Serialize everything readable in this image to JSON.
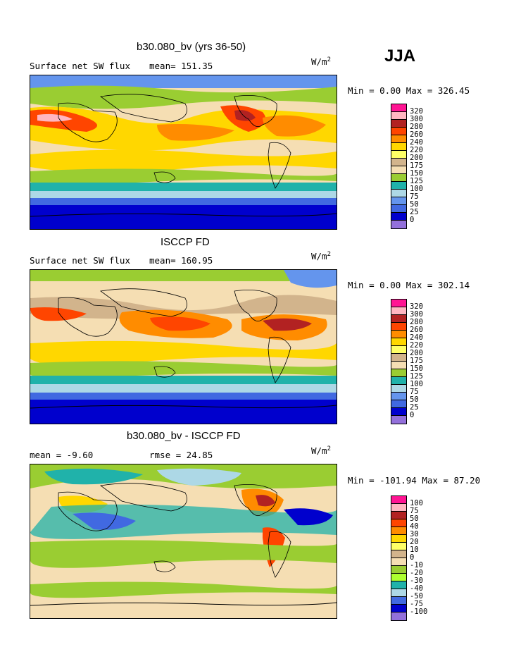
{
  "season": "JJA",
  "panels": [
    {
      "title": "b30.080_bv (yrs 36-50)",
      "left_label": "Surface net SW flux",
      "mean_label": "mean= 151.35",
      "units": "W/m",
      "units_sup": "2",
      "minmax_label": "Min =   0.00 Max = 326.45",
      "levels": [
        "320",
        "300",
        "280",
        "260",
        "240",
        "220",
        "200",
        "175",
        "150",
        "125",
        "100",
        "75",
        "50",
        "25",
        "0"
      ],
      "colors": [
        "#ff1493",
        "#ffb6c1",
        "#b22222",
        "#ff4500",
        "#ff8c00",
        "#ffd700",
        "#ffff66",
        "#d2b48c",
        "#f5deb3",
        "#9acd32",
        "#20b2aa",
        "#add8e6",
        "#6495ed",
        "#4169e1",
        "#0000cd",
        "#9370db"
      ]
    },
    {
      "title": "ISCCP FD",
      "left_label": "Surface net SW flux",
      "mean_label": "mean= 160.95",
      "units": "W/m",
      "units_sup": "2",
      "minmax_label": "Min =   0.00 Max = 302.14",
      "levels": [
        "320",
        "300",
        "280",
        "260",
        "240",
        "220",
        "200",
        "175",
        "150",
        "125",
        "100",
        "75",
        "50",
        "25",
        "0"
      ],
      "colors": [
        "#ff1493",
        "#ffb6c1",
        "#b22222",
        "#ff4500",
        "#ff8c00",
        "#ffd700",
        "#ffff66",
        "#d2b48c",
        "#f5deb3",
        "#9acd32",
        "#20b2aa",
        "#add8e6",
        "#6495ed",
        "#4169e1",
        "#0000cd",
        "#9370db"
      ]
    },
    {
      "title": "b30.080_bv - ISCCP FD",
      "left_label": "mean =  -9.60",
      "mean_label": "rmse =  24.85",
      "units": "W/m",
      "units_sup": "2",
      "minmax_label": "Min = -101.94 Max =  87.20",
      "levels": [
        "100",
        "75",
        "50",
        "40",
        "30",
        "20",
        "10",
        "0",
        "-10",
        "-20",
        "-30",
        "-40",
        "-50",
        "-75",
        "-100"
      ],
      "colors": [
        "#ff1493",
        "#ffb6c1",
        "#b22222",
        "#ff4500",
        "#ff8c00",
        "#ffd700",
        "#ffff66",
        "#d2b48c",
        "#f5deb3",
        "#9acd32",
        "#adff2f",
        "#20b2aa",
        "#add8e6",
        "#4169e1",
        "#0000cd",
        "#9370db"
      ]
    }
  ],
  "chart_data": [
    {
      "type": "heatmap",
      "title": "b30.080_bv (yrs 36-50)",
      "field": "Surface net SW flux",
      "units": "W/m2",
      "mean": 151.35,
      "min": 0.0,
      "max": 326.45,
      "contour_levels": [
        0,
        25,
        50,
        75,
        100,
        125,
        150,
        175,
        200,
        220,
        240,
        260,
        280,
        300,
        320
      ]
    },
    {
      "type": "heatmap",
      "title": "ISCCP FD",
      "field": "Surface net SW flux",
      "units": "W/m2",
      "mean": 160.95,
      "min": 0.0,
      "max": 302.14,
      "contour_levels": [
        0,
        25,
        50,
        75,
        100,
        125,
        150,
        175,
        200,
        220,
        240,
        260,
        280,
        300,
        320
      ]
    },
    {
      "type": "heatmap",
      "title": "b30.080_bv - ISCCP FD",
      "units": "W/m2",
      "mean": -9.6,
      "rmse": 24.85,
      "min": -101.94,
      "max": 87.2,
      "contour_levels": [
        -100,
        -75,
        -50,
        -40,
        -30,
        -20,
        -10,
        0,
        10,
        20,
        30,
        40,
        50,
        75,
        100
      ]
    }
  ]
}
